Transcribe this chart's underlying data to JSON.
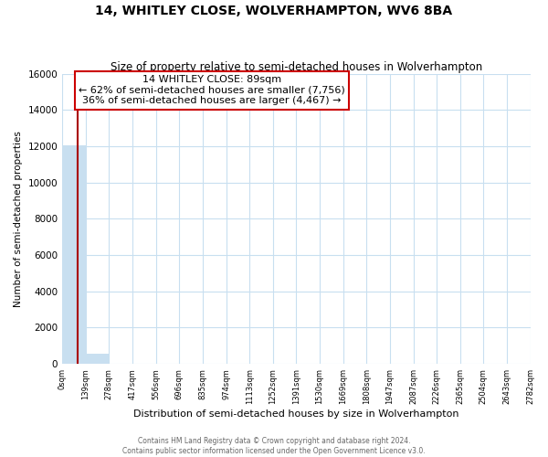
{
  "title": "14, WHITLEY CLOSE, WOLVERHAMPTON, WV6 8BA",
  "subtitle": "Size of property relative to semi-detached houses in Wolverhampton",
  "xlabel": "Distribution of semi-detached houses by size in Wolverhampton",
  "ylabel": "Number of semi-detached properties",
  "bin_edges": [
    0,
    139,
    278,
    417,
    556,
    696,
    835,
    974,
    1113,
    1252,
    1391,
    1530,
    1669,
    1808,
    1947,
    2087,
    2226,
    2365,
    2504,
    2643,
    2782
  ],
  "bar_heights": [
    12050,
    530,
    0,
    0,
    0,
    0,
    0,
    0,
    0,
    0,
    0,
    0,
    0,
    0,
    0,
    0,
    0,
    0,
    0,
    0
  ],
  "bar_color": "#c8dff0",
  "property_line_x": 89,
  "property_line_color": "#aa0000",
  "annotation_title": "14 WHITLEY CLOSE: 89sqm",
  "annotation_line1": "← 62% of semi-detached houses are smaller (7,756)",
  "annotation_line2": "36% of semi-detached houses are larger (4,467) →",
  "annotation_box_color": "#ffffff",
  "annotation_box_edge": "#cc0000",
  "ylim": [
    0,
    16000
  ],
  "yticks": [
    0,
    2000,
    4000,
    6000,
    8000,
    10000,
    12000,
    14000,
    16000
  ],
  "xtick_labels": [
    "0sqm",
    "139sqm",
    "278sqm",
    "417sqm",
    "556sqm",
    "696sqm",
    "835sqm",
    "974sqm",
    "1113sqm",
    "1252sqm",
    "1391sqm",
    "1530sqm",
    "1669sqm",
    "1808sqm",
    "1947sqm",
    "2087sqm",
    "2226sqm",
    "2365sqm",
    "2504sqm",
    "2643sqm",
    "2782sqm"
  ],
  "footer_line1": "Contains HM Land Registry data © Crown copyright and database right 2024.",
  "footer_line2": "Contains public sector information licensed under the Open Government Licence v3.0.",
  "background_color": "#ffffff",
  "grid_color": "#c8dff0",
  "title_fontsize": 10,
  "subtitle_fontsize": 8.5
}
